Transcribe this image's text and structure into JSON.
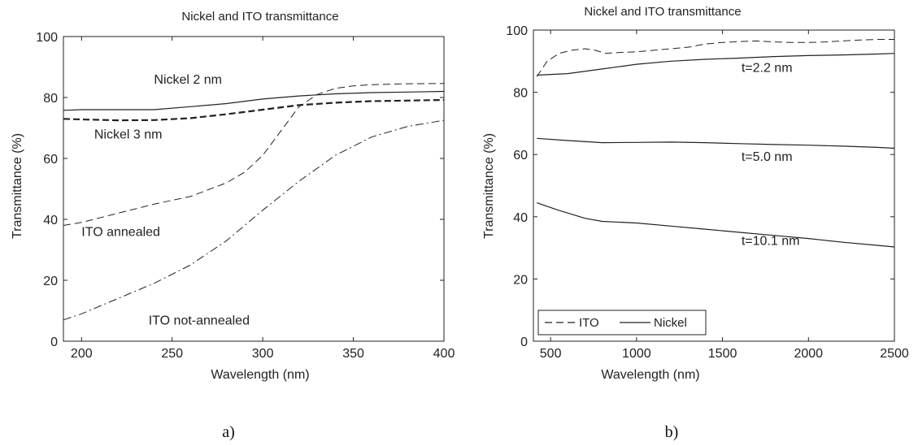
{
  "chart_data": [
    {
      "id": "a",
      "type": "line",
      "title": "Nickel and ITO transmittance",
      "xlabel": "Wavelength (nm)",
      "ylabel": "Transmittance (%)",
      "xlim": [
        190,
        400
      ],
      "ylim": [
        0,
        100
      ],
      "xticks": [
        200,
        250,
        300,
        350,
        400
      ],
      "yticks": [
        0,
        20,
        40,
        60,
        80,
        100
      ],
      "grid": false,
      "caption": "a)",
      "series": [
        {
          "name": "Nickel 2 nm",
          "style": "solid",
          "width": 1.2,
          "x": [
            190,
            200,
            220,
            240,
            260,
            280,
            300,
            320,
            340,
            360,
            380,
            400
          ],
          "y": [
            75.8,
            76,
            76,
            76,
            77,
            78,
            79.5,
            80.5,
            81.2,
            81.6,
            81.8,
            82
          ]
        },
        {
          "name": "Nickel 3 nm",
          "style": "dashed-bold",
          "width": 2.2,
          "x": [
            190,
            200,
            220,
            240,
            260,
            280,
            300,
            320,
            340,
            360,
            380,
            400
          ],
          "y": [
            73,
            72.8,
            72.5,
            72.6,
            73.2,
            74.5,
            76,
            77.5,
            78.3,
            78.8,
            79,
            79.2
          ]
        },
        {
          "name": "ITO annealed",
          "style": "dashed",
          "width": 1,
          "x": [
            190,
            200,
            220,
            240,
            260,
            280,
            290,
            300,
            310,
            320,
            330,
            340,
            350,
            360,
            380,
            400
          ],
          "y": [
            38,
            39,
            42,
            45,
            47.5,
            52,
            55.5,
            61,
            69,
            77,
            81,
            83,
            83.8,
            84.2,
            84.5,
            84.6
          ]
        },
        {
          "name": "ITO not-annealed",
          "style": "dashdot",
          "width": 1,
          "x": [
            190,
            200,
            220,
            240,
            260,
            280,
            300,
            320,
            340,
            360,
            380,
            400
          ],
          "y": [
            7,
            9,
            14,
            19,
            25,
            33,
            43,
            52.5,
            61,
            67,
            70.5,
            72.5
          ]
        }
      ],
      "annotations": [
        {
          "text": "Nickel 2 nm",
          "x": 240,
          "y": 84.5
        },
        {
          "text": "Nickel 3 nm",
          "x": 207,
          "y": 66.5
        },
        {
          "text": "ITO annealed",
          "x": 200,
          "y": 34.5
        },
        {
          "text": "ITO not-annealed",
          "x": 237,
          "y": 5.5
        }
      ]
    },
    {
      "id": "b",
      "type": "line",
      "title": "Nickel and ITO transmittance",
      "xlabel": "Wavelength (nm)",
      "ylabel": "Transmittance (%)",
      "xlim": [
        400,
        2500
      ],
      "ylim": [
        0,
        100
      ],
      "xticks": [
        500,
        1000,
        1500,
        2000,
        2500
      ],
      "yticks": [
        0,
        20,
        40,
        60,
        80,
        100
      ],
      "grid": false,
      "legend": {
        "position": "bottom-left",
        "entries": [
          {
            "label": "ITO",
            "style": "dashed"
          },
          {
            "label": "Nickel",
            "style": "solid"
          }
        ]
      },
      "caption": "b)",
      "series": [
        {
          "name": "ITO",
          "style": "dashed",
          "width": 1,
          "x": [
            420,
            480,
            550,
            620,
            700,
            760,
            820,
            900,
            1000,
            1100,
            1200,
            1300,
            1400,
            1500,
            1600,
            1700,
            1800,
            1900,
            2000,
            2100,
            2200,
            2300,
            2400,
            2500
          ],
          "y": [
            85,
            90,
            92.5,
            93.5,
            94,
            93.5,
            92.5,
            92.8,
            93,
            93.5,
            94,
            94.5,
            95.5,
            96,
            96.3,
            96.5,
            96.2,
            96,
            96,
            96.2,
            96.5,
            96.8,
            97,
            97
          ]
        },
        {
          "name": "Nickel t=2.2 nm",
          "style": "solid",
          "width": 1.2,
          "x": [
            420,
            600,
            800,
            1000,
            1200,
            1400,
            1600,
            1800,
            2000,
            2200,
            2400,
            2500
          ],
          "y": [
            85.5,
            86,
            87.5,
            89,
            90,
            90.6,
            91,
            91.5,
            91.8,
            92,
            92.3,
            92.5
          ]
        },
        {
          "name": "Nickel t=5.0 nm",
          "style": "solid",
          "width": 1.2,
          "x": [
            420,
            600,
            800,
            1000,
            1200,
            1400,
            1600,
            1800,
            2000,
            2200,
            2400,
            2500
          ],
          "y": [
            65.2,
            64.5,
            63.8,
            63.9,
            64,
            63.8,
            63.5,
            63.2,
            63,
            62.7,
            62.3,
            62
          ]
        },
        {
          "name": "Nickel t=10.1 nm",
          "style": "solid",
          "width": 1.2,
          "x": [
            420,
            550,
            700,
            800,
            1000,
            1200,
            1400,
            1600,
            1800,
            2000,
            2200,
            2400,
            2500
          ],
          "y": [
            44.5,
            42,
            39.5,
            38.5,
            38,
            37,
            36,
            35,
            34,
            33,
            31.8,
            30.8,
            30.3
          ]
        }
      ],
      "annotations": [
        {
          "text": "t=2.2 nm",
          "x": 1610,
          "y": 86.5
        },
        {
          "text": "t=5.0 nm",
          "x": 1610,
          "y": 58
        },
        {
          "text": "t=10.1 nm",
          "x": 1610,
          "y": 31
        }
      ]
    }
  ]
}
